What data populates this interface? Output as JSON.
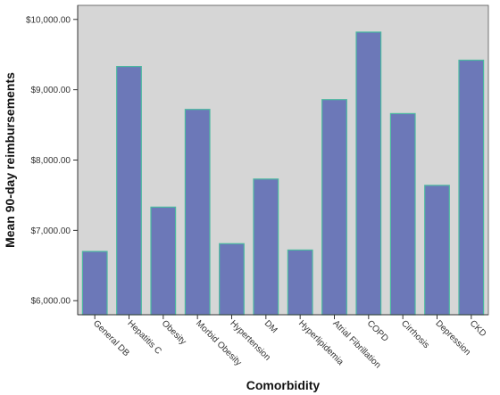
{
  "chart_data": {
    "type": "bar",
    "title": "",
    "xlabel": "Comorbidity",
    "ylabel": "Mean 90-day reimbursements",
    "ylim": [
      5800,
      10200
    ],
    "yticks": [
      6000,
      7000,
      8000,
      9000,
      10000
    ],
    "ytick_labels": [
      "$6,000.00",
      "$7,000.00",
      "$8,000.00",
      "$9,000.00",
      "$10,000.00"
    ],
    "categories": [
      "General DB",
      "Hepatitis C",
      "Obesity",
      "Morbid Obesity",
      "Hypertension",
      "DM",
      "Hyperlipidemia",
      "Atrial Fibrillation",
      "COPD",
      "Cirrhosis",
      "Depression",
      "CKD"
    ],
    "values": [
      6700,
      9330,
      7330,
      8720,
      6810,
      7730,
      6720,
      8860,
      9820,
      8660,
      7640,
      9420
    ],
    "grid": false,
    "legend": "none",
    "colors": {
      "plot_background": "#d6d6d6",
      "bar_fill": "#6c78b8",
      "bar_edge": "#4cb8a0",
      "axis": "#333333"
    }
  }
}
